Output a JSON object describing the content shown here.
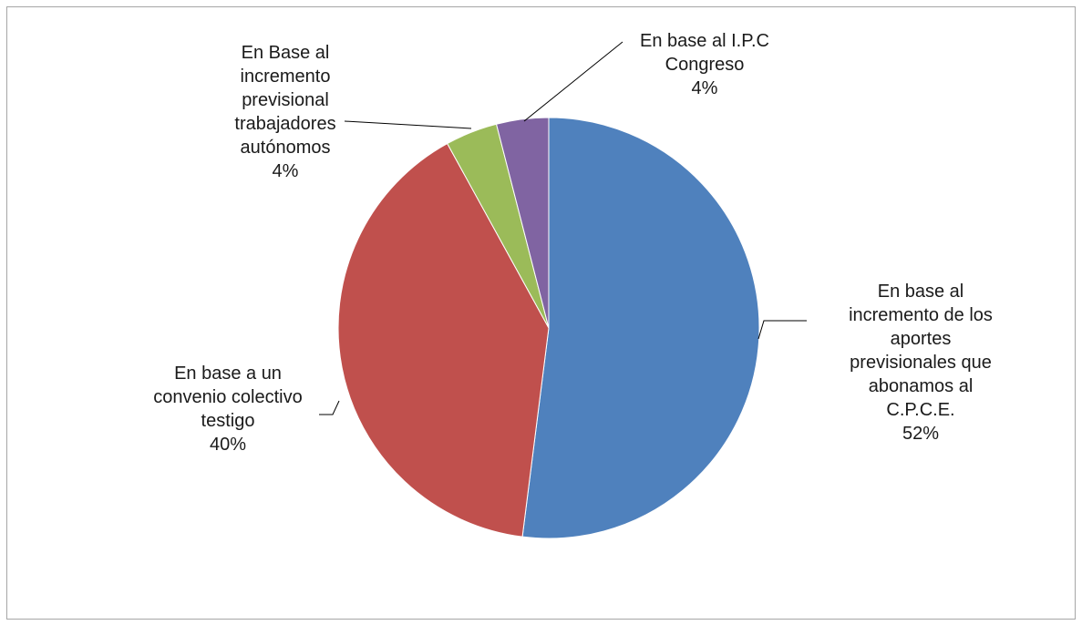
{
  "chart_data": {
    "type": "pie",
    "categories": [
      "En base al incremento de los aportes previsionales que abonamos al C.P.C.E.",
      "En base a un convenio colectivo testigo",
      "En Base al incremento previsional trabajadores autónomos",
      "En base al I.P.C Congreso"
    ],
    "values": [
      52,
      40,
      4,
      4
    ],
    "value_labels": [
      "52%",
      "40%",
      "4%",
      "4%"
    ],
    "colors": [
      "#4f81bd",
      "#c0504d",
      "#9bbb59",
      "#8064a2"
    ]
  }
}
